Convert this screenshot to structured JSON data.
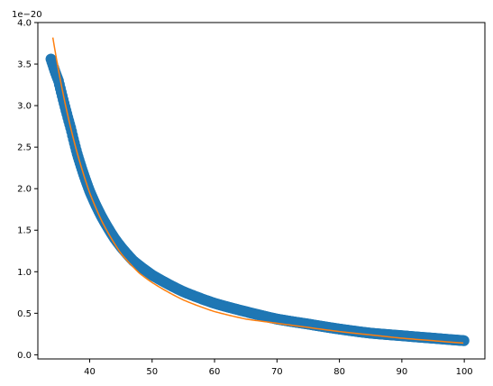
{
  "chart_data": {
    "type": "scatter",
    "title": "",
    "xlabel": "",
    "ylabel": "",
    "y_offset_text": "1e−20",
    "xlim": [
      31.7,
      103.3
    ],
    "ylim": [
      -0.05,
      4.0
    ],
    "x_ticks": [
      40,
      50,
      60,
      70,
      80,
      90,
      100
    ],
    "x_tick_labels": [
      "40",
      "50",
      "60",
      "70",
      "80",
      "90",
      "100"
    ],
    "y_ticks": [
      0.0,
      0.5,
      1.0,
      1.5,
      2.0,
      2.5,
      3.0,
      3.5,
      4.0
    ],
    "y_tick_labels": [
      "0.0",
      "0.5",
      "1.0",
      "1.5",
      "2.0",
      "2.5",
      "3.0",
      "3.5",
      "4.0"
    ],
    "grid": false,
    "legend": "none",
    "series": [
      {
        "kind": "scatter",
        "color": "#1f77b4",
        "x_range": [
          33.8,
          100
        ],
        "x_step": 0.15,
        "points": [
          [
            33.8,
            3.56
          ],
          [
            34.5,
            3.4
          ],
          [
            35,
            3.3
          ],
          [
            36,
            3.0
          ],
          [
            37,
            2.72
          ],
          [
            38,
            2.42
          ],
          [
            39,
            2.18
          ],
          [
            40,
            1.97
          ],
          [
            41,
            1.8
          ],
          [
            42,
            1.65
          ],
          [
            43,
            1.52
          ],
          [
            44,
            1.4
          ],
          [
            45,
            1.3
          ],
          [
            47,
            1.13
          ],
          [
            50,
            0.96
          ],
          [
            55,
            0.76
          ],
          [
            60,
            0.62
          ],
          [
            65,
            0.52
          ],
          [
            70,
            0.43
          ],
          [
            75,
            0.37
          ],
          [
            80,
            0.31
          ],
          [
            85,
            0.26
          ],
          [
            90,
            0.23
          ],
          [
            95,
            0.2
          ],
          [
            100,
            0.17
          ]
        ]
      },
      {
        "kind": "line",
        "color": "#ff7f0e",
        "x_range": [
          34.1,
          100
        ],
        "points": [
          [
            34.1,
            3.82
          ],
          [
            35,
            3.43
          ],
          [
            36,
            3.05
          ],
          [
            37,
            2.72
          ],
          [
            38,
            2.43
          ],
          [
            40,
            1.95
          ],
          [
            42,
            1.6
          ],
          [
            45,
            1.22
          ],
          [
            48,
            0.98
          ],
          [
            50,
            0.87
          ],
          [
            55,
            0.66
          ],
          [
            60,
            0.52
          ],
          [
            65,
            0.43
          ],
          [
            70,
            0.38
          ],
          [
            75,
            0.33
          ],
          [
            80,
            0.28
          ],
          [
            85,
            0.24
          ],
          [
            90,
            0.2
          ],
          [
            95,
            0.17
          ],
          [
            100,
            0.14
          ]
        ]
      }
    ]
  }
}
